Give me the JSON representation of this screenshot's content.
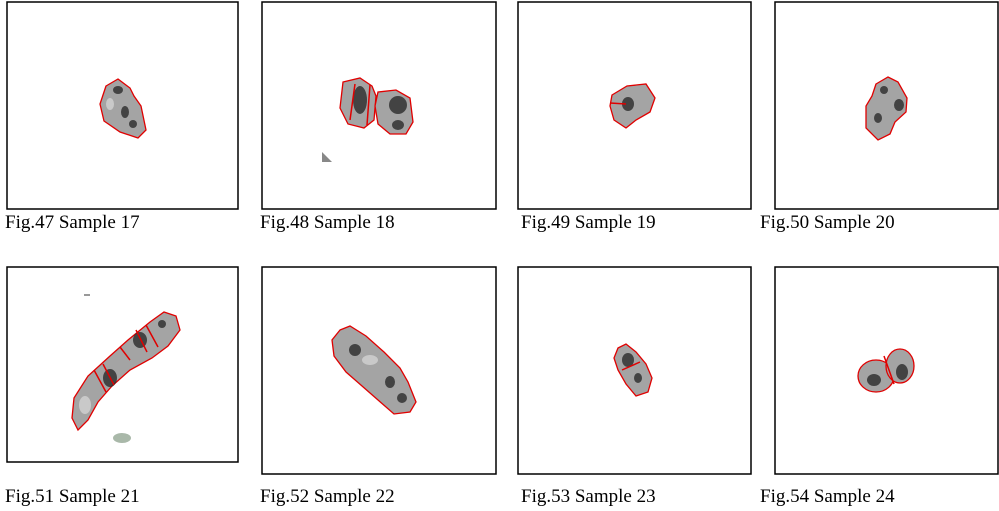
{
  "figures": [
    {
      "caption": "Fig.47 Sample 17"
    },
    {
      "caption": "Fig.48 Sample 18"
    },
    {
      "caption": "Fig.49 Sample 19"
    },
    {
      "caption": "Fig.50 Sample 20"
    },
    {
      "caption": "Fig.51 Sample 21"
    },
    {
      "caption": "Fig.52 Sample 22"
    },
    {
      "caption": "Fig.53 Sample 23"
    },
    {
      "caption": "Fig.54 Sample 24"
    }
  ]
}
